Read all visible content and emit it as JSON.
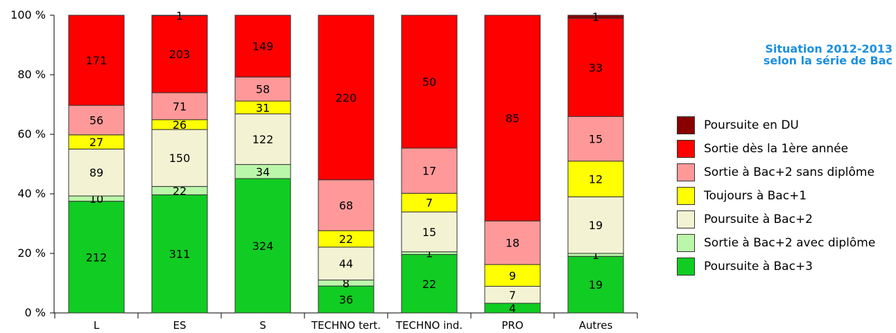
{
  "title_line1": "Situation 2012-2013",
  "title_line2": "selon la série de Bac",
  "chart_data": {
    "type": "bar",
    "stacked": "percent",
    "categories": [
      "L",
      "ES",
      "S",
      "TECHNO tert.",
      "TECHNO ind.",
      "PRO",
      "Autres"
    ],
    "y_ticks": [
      "0 %",
      "20 %",
      "40 %",
      "60 %",
      "80 %",
      "100 %"
    ],
    "ylim": [
      0,
      100
    ],
    "grid": false,
    "legend_position": "right",
    "series": [
      {
        "name": "Poursuite à Bac+3",
        "color": "#11cc22",
        "values": [
          212,
          311,
          324,
          36,
          22,
          4,
          19
        ]
      },
      {
        "name": "Sortie à Bac+2 avec diplôme",
        "color": "#bbf7aa",
        "values": [
          10,
          22,
          34,
          8,
          1,
          0,
          1
        ]
      },
      {
        "name": "Poursuite à Bac+2",
        "color": "#f3f3d4",
        "values": [
          89,
          150,
          122,
          44,
          15,
          7,
          19
        ]
      },
      {
        "name": "Toujours à Bac+1",
        "color": "#ffff00",
        "values": [
          27,
          26,
          31,
          22,
          7,
          9,
          12
        ]
      },
      {
        "name": "Sortie à Bac+2 sans diplôme",
        "color": "#ff9999",
        "values": [
          56,
          71,
          58,
          68,
          17,
          18,
          15
        ]
      },
      {
        "name": "Sortie dès la 1ère année",
        "color": "#ff0000",
        "values": [
          171,
          203,
          149,
          220,
          50,
          85,
          33
        ]
      },
      {
        "name": "Poursuite en DU",
        "color": "#880000",
        "values": [
          0,
          1,
          0,
          0,
          0,
          0,
          1
        ]
      }
    ]
  }
}
